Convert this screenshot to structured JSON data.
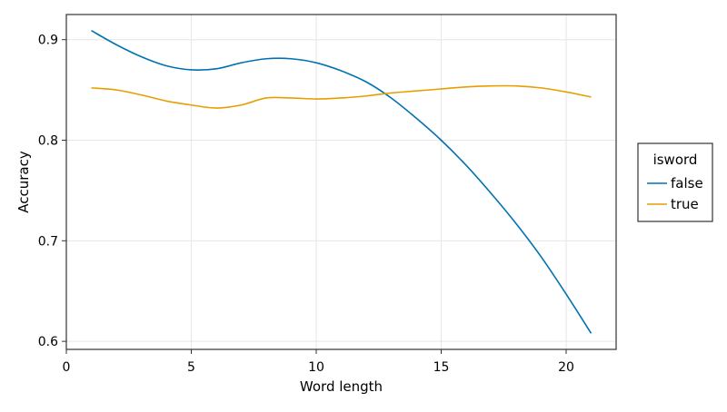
{
  "chart_data": {
    "type": "line",
    "xlabel": "Word length",
    "ylabel": "Accuracy",
    "xlim": [
      0,
      22
    ],
    "ylim": [
      0.592,
      0.925
    ],
    "xticks": [
      0,
      5,
      10,
      15,
      20
    ],
    "yticks": [
      0.6,
      0.7,
      0.8,
      0.9
    ],
    "ytick_labels": [
      "0.6",
      "0.7",
      "0.8",
      "0.9"
    ],
    "grid": true,
    "legend": {
      "title": "isword",
      "position": "right"
    },
    "series": [
      {
        "name": "false",
        "color": "#0072b2",
        "x": [
          1,
          2,
          3,
          4,
          5,
          6,
          7,
          8,
          9,
          10,
          11,
          12,
          13,
          14,
          15,
          16,
          17,
          18,
          19,
          20,
          21
        ],
        "y": [
          0.909,
          0.895,
          0.883,
          0.874,
          0.87,
          0.871,
          0.877,
          0.881,
          0.881,
          0.877,
          0.869,
          0.858,
          0.842,
          0.822,
          0.8,
          0.775,
          0.747,
          0.717,
          0.684,
          0.647,
          0.608
        ]
      },
      {
        "name": "true",
        "color": "#e69f00",
        "x": [
          1,
          2,
          3,
          4,
          5,
          6,
          7,
          8,
          9,
          10,
          11,
          12,
          13,
          14,
          15,
          16,
          17,
          18,
          19,
          20,
          21
        ],
        "y": [
          0.852,
          0.85,
          0.845,
          0.839,
          0.835,
          0.832,
          0.835,
          0.842,
          0.842,
          0.841,
          0.842,
          0.844,
          0.847,
          0.849,
          0.851,
          0.853,
          0.854,
          0.854,
          0.852,
          0.848,
          0.843
        ]
      }
    ]
  }
}
